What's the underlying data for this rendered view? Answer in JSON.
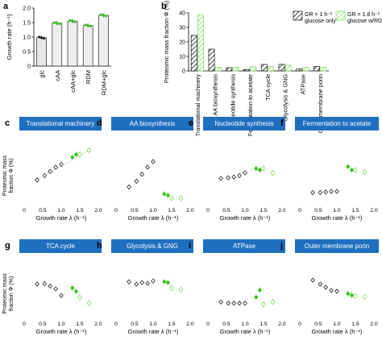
{
  "colors": {
    "grey": "#999999",
    "green": "#7ed957",
    "dark_green": "#38c01e",
    "banner": "#1f6fbf",
    "black": "#111111"
  },
  "chart_data": [
    {
      "panel": "a",
      "type": "bar",
      "ylabel": "Growth rate (h⁻¹)",
      "categories": [
        "glc",
        "cAA",
        "cAA+glc",
        "RDM",
        "RDM+glc"
      ],
      "values": [
        0.98,
        1.48,
        1.55,
        1.4,
        1.75
      ],
      "ylim": [
        0,
        2
      ],
      "yticks": [
        0,
        0.5,
        1.0,
        1.5,
        2.0
      ],
      "ytick_labels": [
        "0",
        "0.5",
        "1.0",
        "1.5",
        "2.0"
      ]
    },
    {
      "panel": "b",
      "type": "bar",
      "ylabel": "Proteomic mass fraction Φ (%)",
      "legend": [
        "GR = 1 h⁻¹ glucose only",
        "GR = 1.8 h⁻¹ glucose w/RDM"
      ],
      "categories": [
        "Translational machinery",
        "AA biosynthesis",
        "Nucleotide synthesis",
        "Fermentation to acetate",
        "TCA cycle",
        "Glycolysis & GNG",
        "ATPase",
        "Outer membrane porin"
      ],
      "series": [
        {
          "values": [
            24.5,
            15.0,
            2.2,
            1.0,
            4.5,
            4.5,
            1.3,
            3.0
          ]
        },
        {
          "values": [
            38.5,
            2.5,
            2.5,
            3.0,
            3.0,
            4.0,
            2.5,
            2.5
          ]
        }
      ],
      "ylim": [
        0,
        40
      ],
      "yticks": [
        0,
        10,
        20,
        30,
        40
      ],
      "ytick_labels": [
        "0",
        "10",
        "20",
        "30",
        "40"
      ]
    },
    {
      "panel": "c",
      "type": "scatter",
      "title": "Translational machinery",
      "xlabel": "Growth rate λ (h⁻¹)",
      "ylabel": "Proteomic mass fraction Φ (%)",
      "xlim": [
        0,
        2
      ],
      "ylim": [
        0,
        40
      ],
      "xticks": [
        0,
        0.5,
        1.0,
        1.5,
        2.0
      ],
      "xtick_labels": [
        "0",
        "0.5",
        "1.0",
        "1.5",
        "2.0"
      ],
      "yticks": [
        0,
        10,
        20,
        30,
        40
      ],
      "ytick_labels": [
        "0",
        "10",
        "20",
        "30",
        "40"
      ],
      "ref_points": [
        [
          0.35,
          17
        ],
        [
          0.55,
          20
        ],
        [
          0.7,
          23
        ],
        [
          0.85,
          26
        ],
        [
          1.0,
          28
        ]
      ],
      "green_points": [
        [
          1.3,
          33
        ],
        [
          1.4,
          35
        ],
        [
          1.5,
          35
        ],
        [
          1.75,
          38
        ]
      ],
      "fit": true
    },
    {
      "panel": "d",
      "type": "scatter",
      "title": "AA biosynthesis",
      "xlabel": "Growth rate λ (h⁻¹)",
      "xlim": [
        0,
        2
      ],
      "ylim": [
        0,
        20
      ],
      "xticks": [
        0,
        0.5,
        1.0,
        1.5,
        2.0
      ],
      "xtick_labels": [
        "0",
        "0.5",
        "1.0",
        "1.5",
        "2.0"
      ],
      "yticks": [
        0,
        5,
        10,
        15,
        20
      ],
      "ytick_labels": [
        "0",
        "5",
        "10",
        "15",
        "20"
      ],
      "ref_points": [
        [
          0.35,
          6
        ],
        [
          0.55,
          8
        ],
        [
          0.7,
          10.5
        ],
        [
          0.85,
          13
        ],
        [
          1.0,
          15
        ]
      ],
      "green_points": [
        [
          1.3,
          3.5
        ],
        [
          1.4,
          3
        ],
        [
          1.5,
          2
        ],
        [
          1.75,
          2
        ]
      ]
    },
    {
      "panel": "e",
      "type": "scatter",
      "title": "Nucleotide synthesis",
      "xlabel": "Growth rate λ (h⁻¹)",
      "xlim": [
        0,
        2
      ],
      "ylim": [
        0,
        4
      ],
      "xticks": [
        0,
        0.5,
        1.0,
        1.5,
        2.0
      ],
      "xtick_labels": [
        "0",
        "0.5",
        "1.0",
        "1.5",
        "2.0"
      ],
      "yticks": [
        0,
        1,
        2,
        3,
        4
      ],
      "ytick_labels": [
        "0",
        "1",
        "2",
        "3",
        "4"
      ],
      "ref_points": [
        [
          0.35,
          1.8
        ],
        [
          0.55,
          1.85
        ],
        [
          0.7,
          1.9
        ],
        [
          0.85,
          2.0
        ],
        [
          1.0,
          2.2
        ]
      ],
      "green_points": [
        [
          1.3,
          2.5
        ],
        [
          1.4,
          2.4
        ],
        [
          1.5,
          2.5
        ],
        [
          1.75,
          2.2
        ]
      ]
    },
    {
      "panel": "f",
      "type": "scatter",
      "title": "Fermentation to acetate",
      "xlabel": "Growth rate λ (h⁻¹)",
      "xlim": [
        0,
        2
      ],
      "ylim": [
        0,
        5
      ],
      "xticks": [
        0,
        0.5,
        1.0,
        1.5,
        2.0
      ],
      "xtick_labels": [
        "0",
        "0.5",
        "1.0",
        "1.5",
        "2.0"
      ],
      "yticks": [
        0,
        1,
        2,
        3,
        4,
        5
      ],
      "ytick_labels": [
        "0",
        "1",
        "2",
        "3",
        "4",
        "5"
      ],
      "ref_points": [
        [
          0.35,
          1
        ],
        [
          0.55,
          1
        ],
        [
          0.7,
          1.05
        ],
        [
          0.85,
          1.1
        ],
        [
          1.0,
          1.1
        ]
      ],
      "green_points": [
        [
          1.3,
          3.3
        ],
        [
          1.4,
          3
        ],
        [
          1.5,
          3.0
        ],
        [
          1.75,
          2.8
        ]
      ]
    },
    {
      "panel": "g",
      "type": "scatter",
      "title": "TCA cycle",
      "xlabel": "Growth rate λ (h⁻¹)",
      "ylabel": "Proteomic mass fraction Φ (%)",
      "xlim": [
        0,
        2
      ],
      "ylim": [
        0,
        10
      ],
      "xticks": [
        0,
        0.5,
        1.0,
        1.5,
        2.0
      ],
      "xtick_labels": [
        "0",
        "0.5",
        "1.0",
        "1.5",
        "2.0"
      ],
      "yticks": [
        0,
        2,
        4,
        6,
        8,
        10
      ],
      "ytick_labels": [
        "0",
        "2",
        "4",
        "6",
        "8",
        "10"
      ],
      "ref_points": [
        [
          0.35,
          7
        ],
        [
          0.55,
          7.1
        ],
        [
          0.7,
          6.6
        ],
        [
          0.85,
          6.0
        ],
        [
          1.0,
          4.6
        ]
      ],
      "green_points": [
        [
          1.3,
          6.2
        ],
        [
          1.4,
          5.5
        ],
        [
          1.5,
          4.2
        ],
        [
          1.75,
          3.0
        ]
      ]
    },
    {
      "panel": "h",
      "type": "scatter",
      "title": "Glycolysis & GNG",
      "xlabel": "Growth rate λ (h⁻¹)",
      "xlim": [
        0,
        2
      ],
      "ylim": [
        0,
        6
      ],
      "xticks": [
        0,
        0.5,
        1.0,
        1.5,
        2.0
      ],
      "xtick_labels": [
        "0",
        "0.5",
        "1.0",
        "1.5",
        "2.0"
      ],
      "yticks": [
        0,
        1,
        2,
        3,
        4,
        5,
        6
      ],
      "ytick_labels": [
        "0",
        "1",
        "2",
        "3",
        "4",
        "5",
        "6"
      ],
      "ref_points": [
        [
          0.35,
          4.5
        ],
        [
          0.55,
          4.2
        ],
        [
          0.7,
          4.4
        ],
        [
          0.85,
          4.3
        ],
        [
          1.0,
          4.6
        ]
      ],
      "green_points": [
        [
          1.3,
          4.5
        ],
        [
          1.4,
          4.4
        ],
        [
          1.5,
          3.7
        ],
        [
          1.75,
          3.5
        ]
      ]
    },
    {
      "panel": "i",
      "type": "scatter",
      "title": "ATPase",
      "xlabel": "Growth rate λ (h⁻¹)",
      "xlim": [
        0,
        2
      ],
      "ylim": [
        0,
        4
      ],
      "xticks": [
        0,
        0.5,
        1.0,
        1.5,
        2.0
      ],
      "xtick_labels": [
        "0",
        "0.5",
        "1.0",
        "1.5",
        "2.0"
      ],
      "yticks": [
        0,
        1,
        2,
        3,
        4
      ],
      "ytick_labels": [
        "0",
        "1",
        "2",
        "3",
        "4"
      ],
      "ref_points": [
        [
          0.35,
          1.3
        ],
        [
          0.55,
          1.2
        ],
        [
          0.7,
          1.2
        ],
        [
          0.85,
          1.2
        ],
        [
          1.0,
          1.2
        ]
      ],
      "green_points": [
        [
          1.3,
          1.7
        ],
        [
          1.4,
          2.3
        ],
        [
          1.5,
          1.1
        ],
        [
          1.75,
          1.3
        ]
      ]
    },
    {
      "panel": "j",
      "type": "scatter",
      "title": "Outer membrane porin",
      "xlabel": "Growth rate λ (h⁻¹)",
      "xlim": [
        0,
        2
      ],
      "ylim": [
        0,
        6
      ],
      "xticks": [
        0,
        0.5,
        1.0,
        1.5,
        2.0
      ],
      "xtick_labels": [
        "0",
        "0.5",
        "1.0",
        "1.5",
        "2.0"
      ],
      "yticks": [
        0,
        2,
        4,
        6
      ],
      "ytick_labels": [
        "0",
        "2",
        "4",
        "6"
      ],
      "ref_points": [
        [
          0.35,
          4.7
        ],
        [
          0.55,
          4.2
        ],
        [
          0.7,
          3.8
        ],
        [
          0.85,
          3.4
        ],
        [
          1.0,
          3.3
        ]
      ],
      "green_points": [
        [
          1.3,
          3.0
        ],
        [
          1.4,
          2.8
        ],
        [
          1.5,
          2.7
        ],
        [
          1.75,
          2.6
        ]
      ]
    }
  ]
}
